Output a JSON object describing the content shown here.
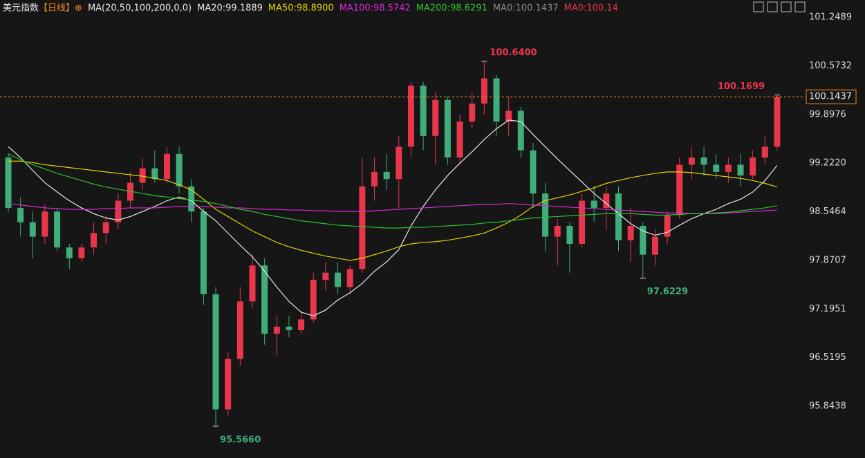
{
  "header": [
    {
      "text": "美元指数",
      "color": "#e8e8e8"
    },
    {
      "text": "【日线】",
      "color": "#f08a24"
    },
    {
      "text": "⊕",
      "color": "#f08a24"
    },
    {
      "text": "MA(20,50,100,200,0,0)",
      "color": "#e8e8e8"
    },
    {
      "text": "MA20:99.1889",
      "color": "#e8e8e8"
    },
    {
      "text": "MA50:98.8900",
      "color": "#e6d200"
    },
    {
      "text": "MA100:98.5742",
      "color": "#d62ad6"
    },
    {
      "text": "MA200:98.6291",
      "color": "#2ec42e"
    },
    {
      "text": "MA0:100.1437",
      "color": "#8a8a8a"
    },
    {
      "text": "MA0:100.14",
      "color": "#e8364a"
    }
  ],
  "chart_data": {
    "type": "candlestick",
    "up_color": "#e8364a",
    "down_color": "#3fae7a",
    "ylim": [
      95.124,
      101.489
    ],
    "yticks": [
      101.2489,
      100.5732,
      99.8976,
      {
        "value": 99.222,
        "label": "99.2220"
      },
      98.5464,
      97.8707,
      97.1951,
      96.5195,
      95.8438
    ],
    "candles": [
      [
        99.3,
        99.35,
        98.55,
        98.6
      ],
      [
        98.6,
        98.75,
        98.2,
        98.4
      ],
      [
        98.4,
        98.55,
        97.9,
        98.2
      ],
      [
        98.2,
        98.65,
        98.1,
        98.55
      ],
      [
        98.55,
        98.6,
        98.0,
        98.05
      ],
      [
        98.05,
        98.1,
        97.75,
        97.9
      ],
      [
        97.9,
        98.1,
        97.85,
        98.05
      ],
      [
        98.05,
        98.4,
        97.95,
        98.25
      ],
      [
        98.25,
        98.5,
        98.1,
        98.4
      ],
      [
        98.4,
        98.8,
        98.3,
        98.7
      ],
      [
        98.7,
        99.1,
        98.6,
        98.95
      ],
      [
        98.95,
        99.3,
        98.85,
        99.15
      ],
      [
        99.15,
        99.4,
        98.95,
        99.0
      ],
      [
        99.0,
        99.45,
        98.95,
        99.35
      ],
      [
        99.35,
        99.45,
        98.8,
        98.9
      ],
      [
        98.9,
        99.0,
        98.4,
        98.55
      ],
      [
        98.55,
        98.6,
        97.25,
        97.4
      ],
      [
        97.4,
        97.5,
        95.566,
        95.8
      ],
      [
        95.8,
        96.6,
        95.7,
        96.5
      ],
      [
        96.5,
        97.5,
        96.4,
        97.3
      ],
      [
        97.3,
        97.95,
        97.2,
        97.8
      ],
      [
        97.8,
        97.9,
        96.7,
        96.85
      ],
      [
        96.85,
        97.1,
        96.55,
        96.95
      ],
      [
        96.95,
        97.1,
        96.8,
        96.9
      ],
      [
        96.9,
        97.15,
        96.85,
        97.05
      ],
      [
        97.05,
        97.7,
        97.0,
        97.6
      ],
      [
        97.6,
        97.85,
        97.45,
        97.7
      ],
      [
        97.7,
        97.85,
        97.4,
        97.5
      ],
      [
        97.5,
        97.8,
        97.4,
        97.75
      ],
      [
        97.75,
        99.3,
        97.7,
        98.9
      ],
      [
        98.9,
        99.3,
        98.7,
        99.1
      ],
      [
        99.1,
        99.35,
        98.85,
        99.0
      ],
      [
        99.0,
        99.6,
        98.6,
        99.45
      ],
      [
        99.45,
        100.35,
        99.3,
        100.3
      ],
      [
        100.3,
        100.35,
        99.4,
        99.6
      ],
      [
        99.6,
        100.2,
        99.2,
        100.1
      ],
      [
        100.1,
        100.15,
        99.2,
        99.3
      ],
      [
        99.3,
        99.9,
        99.2,
        99.8
      ],
      [
        99.8,
        100.2,
        99.7,
        100.05
      ],
      [
        100.05,
        100.64,
        99.9,
        100.4
      ],
      [
        100.4,
        100.45,
        99.6,
        99.8
      ],
      [
        99.8,
        100.15,
        99.6,
        99.95
      ],
      [
        99.95,
        100.0,
        99.3,
        99.4
      ],
      [
        99.4,
        99.5,
        98.6,
        98.8
      ],
      [
        98.8,
        98.95,
        98.0,
        98.2
      ],
      [
        98.2,
        98.45,
        97.8,
        98.35
      ],
      [
        98.35,
        98.4,
        97.7,
        98.1
      ],
      [
        98.1,
        98.8,
        98.05,
        98.7
      ],
      [
        98.7,
        98.9,
        98.4,
        98.6
      ],
      [
        98.6,
        98.9,
        98.3,
        98.8
      ],
      [
        98.8,
        98.9,
        98.0,
        98.15
      ],
      [
        98.15,
        98.6,
        97.85,
        98.35
      ],
      [
        98.35,
        98.4,
        97.6229,
        97.95
      ],
      [
        97.95,
        98.3,
        97.8,
        98.2
      ],
      [
        98.2,
        98.55,
        98.1,
        98.5
      ],
      [
        98.5,
        99.3,
        98.45,
        99.2
      ],
      [
        99.2,
        99.45,
        99.0,
        99.3
      ],
      [
        99.3,
        99.45,
        99.05,
        99.2
      ],
      [
        99.2,
        99.35,
        99.0,
        99.1
      ],
      [
        99.1,
        99.3,
        98.95,
        99.2
      ],
      [
        99.2,
        99.35,
        98.9,
        99.05
      ],
      [
        99.05,
        99.4,
        99.0,
        99.3
      ],
      [
        99.3,
        99.6,
        99.2,
        99.45
      ],
      [
        99.45,
        100.1699,
        99.4,
        100.1437
      ]
    ],
    "series": [
      {
        "name": "MA20",
        "color": "#e8e8e8",
        "values": [
          99.45,
          99.3,
          99.12,
          98.95,
          98.82,
          98.7,
          98.6,
          98.52,
          98.46,
          98.43,
          98.48,
          98.55,
          98.62,
          98.7,
          98.75,
          98.7,
          98.55,
          98.42,
          98.25,
          98.08,
          97.92,
          97.72,
          97.5,
          97.3,
          97.15,
          97.1,
          97.18,
          97.32,
          97.42,
          97.55,
          97.72,
          97.85,
          98.02,
          98.35,
          98.62,
          98.85,
          99.05,
          99.22,
          99.38,
          99.55,
          99.7,
          99.82,
          99.8,
          99.62,
          99.45,
          99.28,
          99.12,
          98.96,
          98.8,
          98.66,
          98.52,
          98.38,
          98.28,
          98.22,
          98.26,
          98.36,
          98.45,
          98.52,
          98.58,
          98.66,
          98.72,
          98.82,
          98.98,
          99.19
        ]
      },
      {
        "name": "MA50",
        "color": "#e6d200",
        "values": [
          99.25,
          99.25,
          99.23,
          99.2,
          99.18,
          99.16,
          99.14,
          99.12,
          99.1,
          99.08,
          99.06,
          99.04,
          99.01,
          98.98,
          98.92,
          98.85,
          98.72,
          98.58,
          98.48,
          98.38,
          98.28,
          98.2,
          98.12,
          98.06,
          98.01,
          97.97,
          97.93,
          97.9,
          97.87,
          97.9,
          97.95,
          98.0,
          98.06,
          98.1,
          98.12,
          98.13,
          98.15,
          98.18,
          98.21,
          98.25,
          98.32,
          98.4,
          98.5,
          98.62,
          98.7,
          98.74,
          98.78,
          98.83,
          98.88,
          98.94,
          98.98,
          99.02,
          99.05,
          99.08,
          99.1,
          99.1,
          99.09,
          99.07,
          99.05,
          99.03,
          99.01,
          98.98,
          98.94,
          98.89
        ]
      },
      {
        "name": "MA100",
        "color": "#d62ad6",
        "values": [
          98.66,
          98.64,
          98.62,
          98.6,
          98.59,
          98.58,
          98.58,
          98.58,
          98.59,
          98.59,
          98.6,
          98.6,
          98.6,
          98.61,
          98.62,
          98.62,
          98.62,
          98.61,
          98.6,
          98.6,
          98.59,
          98.58,
          98.58,
          98.57,
          98.57,
          98.56,
          98.56,
          98.55,
          98.55,
          98.55,
          98.56,
          98.57,
          98.58,
          98.59,
          98.6,
          98.61,
          98.62,
          98.63,
          98.64,
          98.65,
          98.65,
          98.66,
          98.65,
          98.64,
          98.63,
          98.62,
          98.61,
          98.6,
          98.59,
          98.58,
          98.57,
          98.56,
          98.55,
          98.54,
          98.53,
          98.53,
          98.52,
          98.52,
          98.52,
          98.53,
          98.54,
          98.55,
          98.56,
          98.57
        ]
      },
      {
        "name": "MA200",
        "color": "#2ec42e",
        "values": [
          99.35,
          99.27,
          99.2,
          99.14,
          99.08,
          99.03,
          98.98,
          98.93,
          98.89,
          98.86,
          98.83,
          98.8,
          98.77,
          98.75,
          98.73,
          98.71,
          98.69,
          98.66,
          98.62,
          98.58,
          98.55,
          98.51,
          98.48,
          98.45,
          98.42,
          98.4,
          98.38,
          98.36,
          98.35,
          98.34,
          98.33,
          98.32,
          98.32,
          98.33,
          98.33,
          98.34,
          98.35,
          98.36,
          98.37,
          98.39,
          98.4,
          98.42,
          98.44,
          98.46,
          98.47,
          98.48,
          98.49,
          98.5,
          98.51,
          98.52,
          98.52,
          98.52,
          98.51,
          98.5,
          98.5,
          98.51,
          98.52,
          98.52,
          98.53,
          98.54,
          98.56,
          98.58,
          98.6,
          98.63
        ]
      }
    ],
    "annotations": [
      {
        "value": 100.64,
        "label": "100.6400",
        "candle": 39,
        "color": "#e8364a"
      },
      {
        "value": 95.566,
        "label": "95.5660",
        "candle": 17,
        "color": "#3fae7a"
      },
      {
        "value": 97.6229,
        "label": "97.6229",
        "candle": 52,
        "color": "#3fae7a"
      },
      {
        "value": 100.1699,
        "label": "100.1699",
        "candle": 63,
        "color": "#e8364a"
      }
    ],
    "last_price": 100.1437,
    "last_price_color": "#f08a24"
  }
}
